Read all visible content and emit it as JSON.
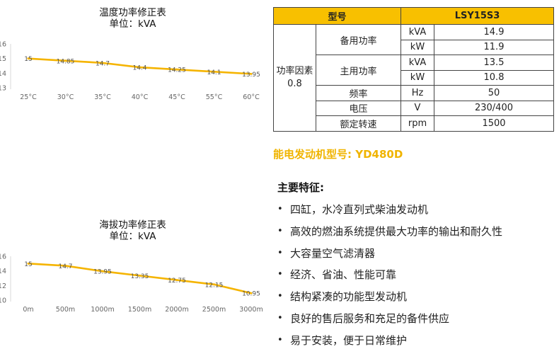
{
  "temp_chart": {
    "title": "温度功率修正表",
    "unit": "单位：kVA",
    "chart_data": {
      "type": "line",
      "title": "温度功率修正表",
      "subtitle": "单位：kVA",
      "categories": [
        "25°C",
        "30°C",
        "35°C",
        "40°C",
        "45°C",
        "55°C",
        "60°C"
      ],
      "values": [
        15,
        14.85,
        14.7,
        14.4,
        14.25,
        14.1,
        13.95
      ],
      "value_labels": [
        "15",
        "14.85",
        "14.7",
        "14.4",
        "14.25",
        "14.1",
        "13.95"
      ],
      "yticks": [
        "16",
        "15",
        "14",
        "13"
      ],
      "ylim": [
        13,
        16
      ],
      "grid": false,
      "color": "#f5b400"
    }
  },
  "alt_chart": {
    "title": "海拔功率修正表",
    "unit": "单位：kVA",
    "chart_data": {
      "type": "line",
      "title": "海拔功率修正表",
      "subtitle": "单位：kVA",
      "categories": [
        "0m",
        "500m",
        "1000m",
        "1500m",
        "2000m",
        "2500m",
        "3000m"
      ],
      "values": [
        15,
        14.7,
        13.95,
        13.35,
        12.75,
        12.15,
        10.95
      ],
      "value_labels": [
        "15",
        "14.7",
        "13.95",
        "13.35",
        "12.75",
        "12.15",
        "10.95"
      ],
      "yticks": [
        "16",
        "14",
        "12",
        "10"
      ],
      "ylim": [
        10,
        16
      ],
      "grid": false,
      "color": "#f5b400"
    }
  },
  "spec": {
    "header_model": "型号",
    "header_value": "LSY15S3",
    "pf_label": "功率因素",
    "pf_value": "0.8",
    "standby": "备用功率",
    "prime": "主用功率",
    "rows": {
      "standby_kva_unit": "kVA",
      "standby_kva": "14.9",
      "standby_kw_unit": "kW",
      "standby_kw": "11.9",
      "prime_kva_unit": "kVA",
      "prime_kva": "13.5",
      "prime_kw_unit": "kW",
      "prime_kw": "10.8",
      "freq_label": "频率",
      "freq_unit": "Hz",
      "freq": "50",
      "volt_label": "电压",
      "volt_unit": "V",
      "volt": "230/400",
      "speed_label": "额定转速",
      "speed_unit": "rpm",
      "speed": "1500"
    }
  },
  "engine_line": "能电发动机型号: YD480D",
  "features_heading": "主要特征:",
  "bullet": "•",
  "features": [
    "四缸，水冷直列式柴油发动机",
    "高效的燃油系统提供最大功率的输出和耐久性",
    "大容量空气滤清器",
    "经济、省油、性能可靠",
    "结构紧凑的功能型发动机",
    "良好的售后服务和充足的备件供应",
    "易于安装，便于日常维护"
  ]
}
